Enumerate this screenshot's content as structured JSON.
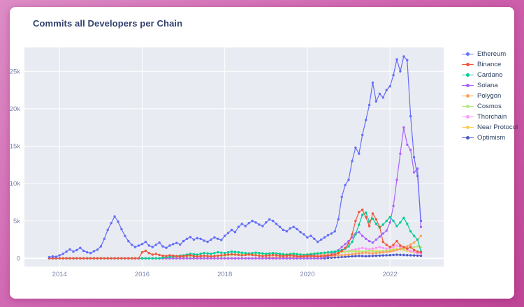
{
  "page": {
    "background_gradient": [
      "#dd8cc6",
      "#bf4596"
    ],
    "card_bg": "#ffffff"
  },
  "chart_data": {
    "type": "line",
    "title": "Commits all Developers per Chain",
    "xlabel": "",
    "ylabel": "",
    "x_unit": "decimal_year",
    "x_start": 2013.75,
    "x_step_years": 0.0833333,
    "n_points": 109,
    "x_range": [
      2013.15,
      2023.3
    ],
    "y_range": [
      -1100,
      28200
    ],
    "plot_bg": "#e9ebf2",
    "grid": "white horizontal and vertical gridlines",
    "legend_position": "right",
    "xticks": [
      {
        "value": 2014,
        "label": "2014"
      },
      {
        "value": 2016,
        "label": "2016"
      },
      {
        "value": 2018,
        "label": "2018"
      },
      {
        "value": 2020,
        "label": "2020"
      },
      {
        "value": 2022,
        "label": "2022"
      }
    ],
    "yticks": [
      {
        "value": 0,
        "label": "0"
      },
      {
        "value": 5000,
        "label": "5k"
      },
      {
        "value": 10000,
        "label": "10k"
      },
      {
        "value": 15000,
        "label": "15k"
      },
      {
        "value": 20000,
        "label": "20k"
      },
      {
        "value": 25000,
        "label": "25k"
      }
    ],
    "series": [
      {
        "name": "Ethereum",
        "color": "#636efa",
        "lead_zeros": 0,
        "values": [
          150,
          250,
          200,
          400,
          600,
          900,
          1200,
          900,
          1100,
          1400,
          1000,
          800,
          700,
          950,
          1150,
          1600,
          2600,
          3800,
          4700,
          5600,
          4900,
          3900,
          3000,
          2300,
          1800,
          1500,
          1700,
          1900,
          2200,
          1700,
          1500,
          1800,
          2100,
          1600,
          1400,
          1700,
          1900,
          2050,
          1850,
          2300,
          2600,
          2850,
          2500,
          2700,
          2600,
          2350,
          2200,
          2500,
          2800,
          2600,
          2450,
          3000,
          3400,
          3800,
          3500,
          4200,
          4600,
          4300,
          4700,
          5000,
          4800,
          4500,
          4300,
          4800,
          5200,
          5000,
          4600,
          4200,
          3800,
          3600,
          4000,
          4200,
          3900,
          3500,
          3200,
          2800,
          3000,
          2600,
          2200,
          2500,
          2800,
          3100,
          3300,
          3600,
          5200,
          8200,
          9800,
          10500,
          13000,
          14800,
          14000,
          16500,
          18500,
          20500,
          23500,
          21000,
          22000,
          21500,
          22500,
          23000,
          24500,
          26600,
          25000,
          27000,
          26500,
          19000,
          13500,
          11000,
          5000
        ]
      },
      {
        "name": "Binance",
        "color": "#ef553b",
        "lead_zeros": 27,
        "values": [
          800,
          1000,
          700,
          500,
          600,
          450,
          350,
          300,
          400,
          350,
          300,
          250,
          300,
          350,
          400,
          300,
          250,
          300,
          350,
          300,
          250,
          300,
          350,
          400,
          450,
          500,
          550,
          500,
          450,
          400,
          450,
          500,
          450,
          400,
          350,
          300,
          350,
          400,
          450,
          400,
          350,
          300,
          350,
          400,
          350,
          300,
          250,
          300,
          300,
          350,
          300,
          250,
          300,
          350,
          400,
          450,
          500,
          700,
          1000,
          1400,
          2000,
          3200,
          5000,
          6200,
          6500,
          5500,
          4300,
          6000,
          5200,
          4200,
          2200,
          1800,
          1500,
          1800,
          2300,
          1700,
          1500,
          1300,
          1500,
          1100,
          900,
          800
        ]
      },
      {
        "name": "Cardano",
        "color": "#00cc96",
        "lead_zeros": 33,
        "values": [
          100,
          150,
          200,
          250,
          300,
          350,
          400,
          500,
          600,
          550,
          500,
          600,
          700,
          650,
          600,
          700,
          800,
          750,
          700,
          800,
          900,
          850,
          800,
          750,
          700,
          650,
          700,
          750,
          700,
          650,
          600,
          650,
          700,
          650,
          600,
          550,
          500,
          550,
          600,
          550,
          500,
          450,
          500,
          550,
          600,
          650,
          700,
          750,
          800,
          850,
          900,
          1000,
          1100,
          1300,
          1600,
          2200,
          3200,
          4500,
          5800,
          6100,
          4900,
          5300,
          4600,
          4100,
          4500,
          5000,
          5500,
          5000,
          4300,
          4800,
          5400,
          4600,
          3600,
          3000,
          2500,
          900
        ]
      },
      {
        "name": "Solana",
        "color": "#ab63fa",
        "lead_zeros": 80,
        "values": [
          150,
          300,
          500,
          800,
          1100,
          1500,
          1900,
          2300,
          2800,
          3300,
          3500,
          3000,
          2600,
          2300,
          2100,
          2500,
          2900,
          3300,
          3700,
          4800,
          7000,
          10500,
          14000,
          17500,
          15200,
          14500,
          11500,
          12000,
          4200
        ]
      },
      {
        "name": "Polygon",
        "color": "#ffa15a",
        "lead_zeros": 63,
        "values": [
          100,
          150,
          120,
          150,
          180,
          150,
          130,
          160,
          190,
          170,
          150,
          180,
          200,
          220,
          250,
          230,
          260,
          280,
          300,
          320,
          350,
          380,
          420,
          460,
          500,
          550,
          600,
          650,
          700,
          750,
          700,
          650,
          700,
          750,
          800,
          850,
          900,
          1000,
          1100,
          1250,
          1400,
          1600,
          1850,
          2100,
          2500,
          3000
        ]
      },
      {
        "name": "Cosmos",
        "color": "#b6e880",
        "lead_zeros": 33,
        "values": [
          80,
          100,
          120,
          100,
          130,
          150,
          180,
          200,
          250,
          220,
          250,
          280,
          300,
          280,
          260,
          300,
          330,
          300,
          350,
          400,
          450,
          500,
          550,
          600,
          550,
          500,
          550,
          600,
          650,
          600,
          550,
          600,
          650,
          600,
          550,
          500,
          550,
          600,
          650,
          600,
          550,
          500,
          550,
          600,
          650,
          700,
          650,
          700,
          750,
          800,
          750,
          800,
          850,
          900,
          950,
          1000,
          900,
          850,
          900,
          950,
          1000,
          900,
          850,
          900,
          950,
          1000,
          1050,
          1100,
          1200,
          1300,
          1200,
          1300,
          1400,
          1500,
          1600,
          1500
        ]
      },
      {
        "name": "Thorchain",
        "color": "#ff97ff",
        "lead_zeros": 69,
        "values": [
          100,
          150,
          200,
          250,
          300,
          350,
          400,
          450,
          500,
          550,
          600,
          650,
          700,
          750,
          800,
          850,
          900,
          950,
          1000,
          1100,
          1200,
          1300,
          1400,
          1300,
          1200,
          1300,
          1400,
          1500,
          1400,
          1300,
          1400,
          1500,
          1700,
          1500,
          1300,
          1200,
          1000,
          900,
          700,
          600
        ]
      },
      {
        "name": "Near Protocol",
        "color": "#fecb52",
        "lead_zeros": 69,
        "values": [
          80,
          120,
          160,
          200,
          240,
          280,
          320,
          360,
          400,
          450,
          500,
          550,
          600,
          650,
          700,
          750,
          800,
          850,
          900,
          950,
          1000,
          950,
          900,
          950,
          1000,
          1050,
          1000,
          950,
          1000,
          1050,
          1100,
          1200,
          1300,
          1200,
          1100,
          1000,
          900,
          800,
          700,
          600
        ]
      },
      {
        "name": "Optimism",
        "color": "#4a58c9",
        "lead_zeros": 81,
        "values": [
          50,
          80,
          110,
          140,
          170,
          200,
          230,
          260,
          290,
          320,
          300,
          280,
          300,
          320,
          340,
          360,
          380,
          400,
          420,
          450,
          480,
          460,
          440,
          420,
          400,
          380,
          360,
          340
        ]
      }
    ]
  }
}
